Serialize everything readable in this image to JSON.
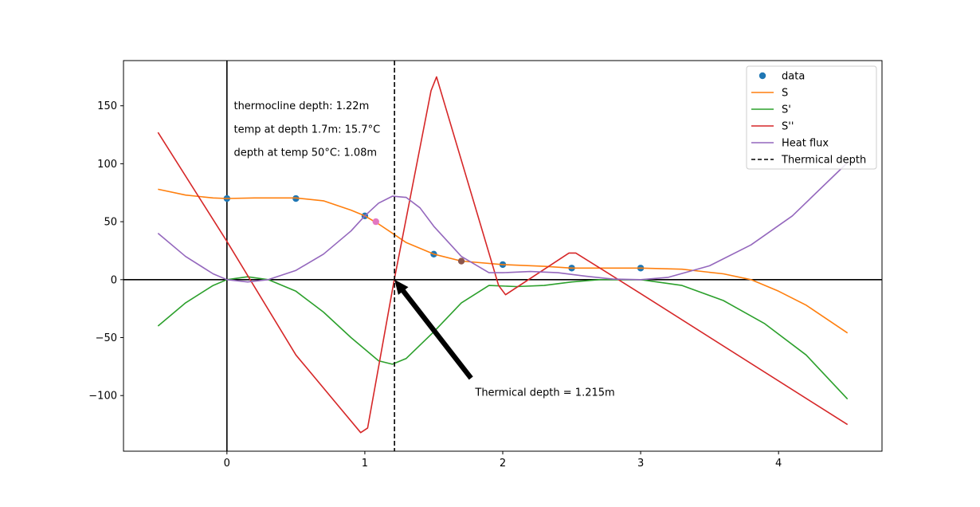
{
  "chart_data": {
    "type": "line",
    "title": "",
    "xlabel": "",
    "ylabel": "",
    "xlim": [
      -0.75,
      4.75
    ],
    "ylim": [
      -148,
      189
    ],
    "x_ticks": [
      0,
      1,
      2,
      3,
      4
    ],
    "y_ticks": [
      -100,
      -50,
      0,
      50,
      100,
      150
    ],
    "x_tick_labels": [
      "0",
      "1",
      "2",
      "3",
      "4"
    ],
    "y_tick_labels": [
      "−100",
      "−50",
      "0",
      "50",
      "100",
      "150"
    ],
    "grid": false,
    "legend_position": "top-right",
    "colors": {
      "data": "#1f77b4",
      "S": "#ff7f0e",
      "S1": "#2ca02c",
      "S2": "#d62728",
      "flux": "#9467bd",
      "thermal": "#000000",
      "brown": "#8c564b",
      "pink": "#e377c2"
    },
    "series": [
      {
        "name": "data",
        "kind": "scatter",
        "color": "#1f77b4",
        "x": [
          0,
          0.5,
          1,
          1.5,
          2,
          2.5,
          3
        ],
        "y": [
          70,
          70,
          55,
          22,
          13,
          10,
          10
        ]
      },
      {
        "name": "S",
        "kind": "line",
        "color": "#ff7f0e",
        "x": [
          -0.5,
          -0.3,
          -0.1,
          0,
          0.2,
          0.5,
          0.7,
          0.9,
          1.0,
          1.1,
          1.2,
          1.3,
          1.5,
          1.7,
          2.0,
          2.3,
          2.5,
          3.0,
          3.3,
          3.6,
          3.8,
          4.0,
          4.2,
          4.5
        ],
        "y": [
          78,
          73,
          70.5,
          70,
          70.5,
          70.5,
          68,
          60,
          55,
          48,
          40,
          32,
          22,
          16,
          13,
          11.5,
          10,
          10,
          9,
          5,
          0,
          -10,
          -22,
          -46
        ]
      },
      {
        "name": "S'",
        "kind": "line",
        "color": "#2ca02c",
        "x": [
          -0.5,
          -0.3,
          -0.1,
          0,
          0.15,
          0.3,
          0.5,
          0.7,
          0.9,
          1.1,
          1.2,
          1.3,
          1.5,
          1.7,
          1.9,
          2.1,
          2.3,
          2.5,
          2.7,
          3.0,
          3.3,
          3.6,
          3.9,
          4.2,
          4.5
        ],
        "y": [
          -40,
          -20,
          -5,
          0,
          2.5,
          0,
          -10,
          -28,
          -50,
          -70,
          -73,
          -68,
          -45,
          -20,
          -5,
          -6,
          -5,
          -2,
          0,
          0,
          -5,
          -18,
          -38,
          -65,
          -103
        ]
      },
      {
        "name": "S''",
        "kind": "line",
        "color": "#d62728",
        "x": [
          -0.5,
          0,
          0.5,
          0.97,
          1.02,
          1.21,
          1.48,
          1.52,
          1.97,
          2.02,
          2.48,
          2.53,
          3.0,
          4.5
        ],
        "y": [
          127,
          33,
          -65,
          -132,
          -128,
          -2,
          163,
          175,
          -5,
          -13,
          23,
          23,
          -12,
          -125
        ]
      },
      {
        "name": "Heat flux",
        "kind": "line",
        "color": "#9467bd",
        "x": [
          -0.5,
          -0.3,
          -0.1,
          0,
          0.15,
          0.3,
          0.5,
          0.7,
          0.9,
          1.0,
          1.1,
          1.2,
          1.3,
          1.4,
          1.5,
          1.7,
          1.9,
          2.0,
          2.2,
          2.4,
          2.6,
          2.8,
          3.0,
          3.2,
          3.5,
          3.8,
          4.1,
          4.5
        ],
        "y": [
          40,
          20,
          5,
          0,
          -2,
          0,
          8,
          22,
          42,
          55,
          66,
          72,
          71,
          62,
          46,
          20,
          6,
          6,
          7,
          6,
          3,
          0.5,
          0,
          2,
          12,
          30,
          55,
          101
        ]
      },
      {
        "name": "Thermical depth",
        "kind": "vline",
        "color": "#000000",
        "x": 1.215
      }
    ],
    "extra_points": [
      {
        "x": 1.08,
        "y": 50,
        "color": "#e377c2"
      },
      {
        "x": 1.7,
        "y": 16,
        "color": "#8c564b"
      }
    ],
    "reference_lines": {
      "hline_y": 0,
      "vline_x": 0
    },
    "annotations": [
      {
        "text": "thermocline depth: 1.22m",
        "x": 0.05,
        "y": 150
      },
      {
        "text": "temp at depth 1.7m: 15.7°C",
        "x": 0.05,
        "y": 130
      },
      {
        "text": "depth at temp 50°C: 1.08m",
        "x": 0.05,
        "y": 110
      },
      {
        "text": "Thermical depth = 1.215m",
        "x": 1.8,
        "y": -97,
        "arrow_from": [
          1.77,
          -85
        ],
        "arrow_to": [
          1.215,
          0
        ]
      }
    ]
  }
}
